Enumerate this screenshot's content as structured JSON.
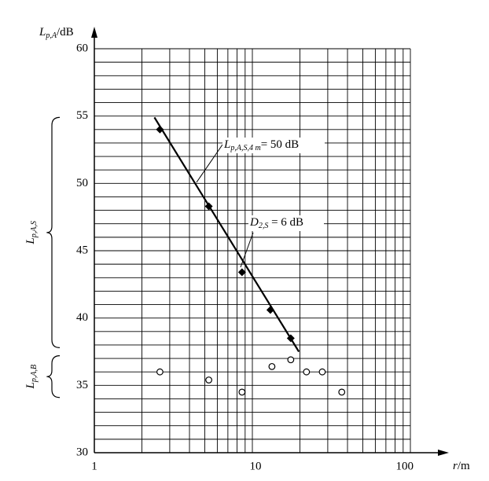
{
  "chart_data": {
    "type": "scatter",
    "x_label": {
      "main": "r",
      "suffix": "/m"
    },
    "y_label": {
      "main": "L",
      "sub": "p,A",
      "suffix": "/dB"
    },
    "xscale": "log",
    "xlim": [
      1,
      100
    ],
    "xticks": [
      1,
      10,
      100
    ],
    "ylim": [
      30,
      60
    ],
    "yticks": [
      30,
      35,
      40,
      45,
      50,
      55,
      60
    ],
    "grid": true,
    "series": [
      {
        "marker": "diamond",
        "color": "#000000",
        "x": [
          2.6,
          5.3,
          8.6,
          13,
          17.5
        ],
        "y": [
          54.0,
          48.3,
          43.4,
          40.6,
          38.5
        ]
      },
      {
        "marker": "open-circle",
        "color": "#000000",
        "x": [
          2.6,
          5.3,
          8.6,
          13.3,
          17.5,
          22,
          27.7,
          36.8
        ],
        "y": [
          36.0,
          35.4,
          34.5,
          36.4,
          36.9,
          36.0,
          36.0,
          34.5
        ]
      }
    ],
    "fit_line": {
      "color": "#000000",
      "x": [
        2.4,
        19.7
      ],
      "y": [
        54.9,
        37.5
      ]
    },
    "annotations": [
      {
        "main": "L",
        "sub": "p,A,S,4 m",
        "suffix": "= 50 dB"
      },
      {
        "main": "D",
        "sub": "2,S",
        "suffix": " = 6 dB"
      }
    ],
    "braces": [
      {
        "main": "L",
        "sub": "p,A,S",
        "range": [
          37.8,
          54.9
        ]
      },
      {
        "main": "L",
        "sub": "p,A,B",
        "range": [
          34.1,
          37.2
        ]
      }
    ]
  }
}
